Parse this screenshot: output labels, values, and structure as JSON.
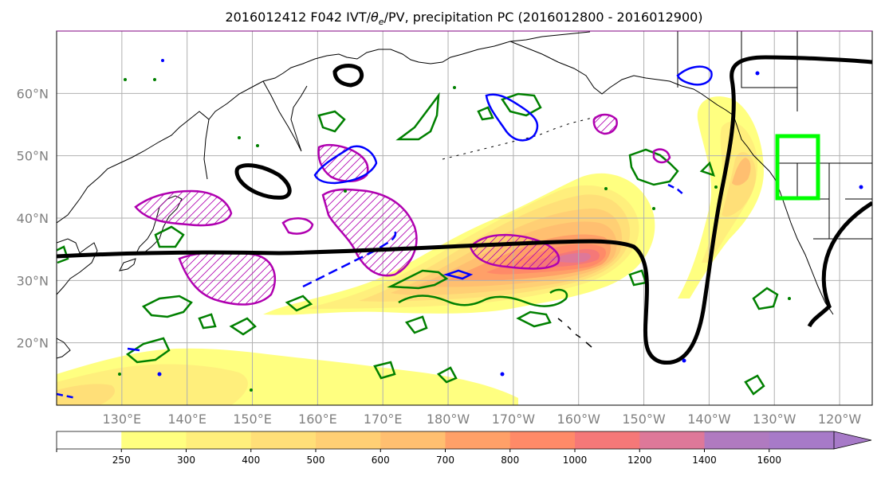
{
  "figure": {
    "title_main": "2016012412 F042 IVT/",
    "title_theta": "θ",
    "title_sub": "e",
    "title_rest": "/PV, precipitation PC (2016012800 - 2016012900)"
  },
  "map": {
    "lon_range": [
      120,
      245
    ],
    "lat_range": [
      10,
      70
    ],
    "lat_labels": [
      {
        "value": 60,
        "label": "60°N"
      },
      {
        "value": 50,
        "label": "50°N"
      },
      {
        "value": 40,
        "label": "40°N"
      },
      {
        "value": 30,
        "label": "30°N"
      },
      {
        "value": 20,
        "label": "20°N"
      }
    ],
    "lon_labels": [
      {
        "value": 130,
        "label": "130°E"
      },
      {
        "value": 140,
        "label": "140°E"
      },
      {
        "value": 150,
        "label": "150°E"
      },
      {
        "value": 160,
        "label": "160°E"
      },
      {
        "value": 170,
        "label": "170°E"
      },
      {
        "value": 180,
        "label": "180°W"
      },
      {
        "value": 190,
        "label": "170°W"
      },
      {
        "value": 200,
        "label": "160°W"
      },
      {
        "value": 210,
        "label": "150°W"
      },
      {
        "value": 220,
        "label": "140°W"
      },
      {
        "value": 230,
        "label": "130°W"
      },
      {
        "value": 240,
        "label": "120°W"
      }
    ],
    "grid": true,
    "target_box": {
      "lon": [
        233,
        239.5
      ],
      "lat": [
        43,
        53
      ],
      "color": "#00ff00"
    }
  },
  "colorbar": {
    "levels": [
      250,
      300,
      400,
      500,
      600,
      700,
      800,
      1000,
      1200,
      1400,
      1600
    ],
    "labels": [
      "250",
      "300",
      "400",
      "500",
      "600",
      "700",
      "800",
      "1000",
      "1200",
      "1400",
      "1600"
    ],
    "colors": [
      "#ffff80",
      "#ffef7c",
      "#ffdf78",
      "#ffcf74",
      "#ffbf70",
      "#ffa068",
      "#ff8a68",
      "#f57878",
      "#de7899",
      "#b07ac0",
      "#a77ac8"
    ],
    "extend": "max"
  }
}
